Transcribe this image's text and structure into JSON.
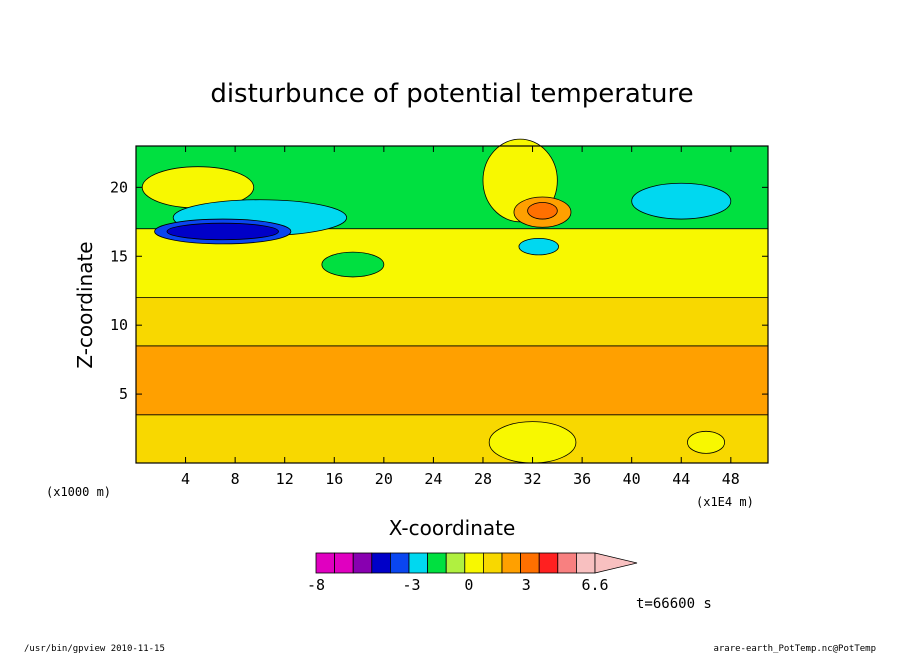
{
  "chart_data": {
    "type": "heatmap",
    "title": "disturbunce of potential temperature",
    "xlabel": "X-coordinate",
    "ylabel": "Z-coordinate",
    "x_unit_label": "(x1000 m)",
    "x_scale_label": "(x1E4 m)",
    "x_range": [
      0,
      51
    ],
    "y_range": [
      0,
      23
    ],
    "x_ticks": [
      "4",
      "8",
      "12",
      "16",
      "20",
      "24",
      "28",
      "32",
      "36",
      "40",
      "44",
      "48"
    ],
    "y_ticks": [
      "5",
      "10",
      "15",
      "20"
    ],
    "colorbar": {
      "labels": [
        "-8",
        "-3",
        "0",
        "3",
        "6.6"
      ],
      "colors": [
        "#e000c0",
        "#e000c0",
        "#8800b0",
        "#0000c8",
        "#0a46f0",
        "#00d8f0",
        "#00e040",
        "#b0f040",
        "#f8f800",
        "#f8d800",
        "#ffa000",
        "#ff7000",
        "#ff2020",
        "#f88080",
        "#f8c0c0"
      ]
    },
    "layers": [
      {
        "name": "band-1-4",
        "color": "#f8d800",
        "zmin": 0,
        "zmax": 3.5
      },
      {
        "name": "band-4-8",
        "color": "#ffa000",
        "zmin": 3.5,
        "zmax": 8.5
      },
      {
        "name": "band-8-12",
        "color": "#f8d800",
        "zmin": 8.5,
        "zmax": 12
      },
      {
        "name": "band-12-17",
        "color": "#f8f800",
        "zmin": 12,
        "zmax": 17
      },
      {
        "name": "upper-green",
        "color": "#00e040",
        "zmin": 17,
        "zmax": 23
      }
    ],
    "features": [
      {
        "name": "upper-left-yellow",
        "color": "#f8f800",
        "x": 5,
        "z": 20,
        "rx": 4.5,
        "rz": 1.5
      },
      {
        "name": "cyan-band-left",
        "color": "#00d8f0",
        "x": 10,
        "z": 17.8,
        "rx": 7,
        "rz": 1.3
      },
      {
        "name": "blue-region",
        "color": "#0a46f0",
        "x": 7,
        "z": 16.8,
        "rx": 5.5,
        "rz": 0.9
      },
      {
        "name": "dark-blue-core",
        "color": "#0000c8",
        "x": 7,
        "z": 16.8,
        "rx": 4.5,
        "rz": 0.6
      },
      {
        "name": "center-top-yellow",
        "color": "#f8f800",
        "x": 31,
        "z": 20.5,
        "rx": 3,
        "rz": 3
      },
      {
        "name": "warm-orange-core",
        "color": "#ffa000",
        "x": 32.8,
        "z": 18.2,
        "rx": 2.3,
        "rz": 1.1
      },
      {
        "name": "hot-core",
        "color": "#ff7000",
        "x": 32.8,
        "z": 18.3,
        "rx": 1.2,
        "rz": 0.6
      },
      {
        "name": "cyan-blob-center",
        "color": "#00d8f0",
        "x": 32.5,
        "z": 15.7,
        "rx": 1.6,
        "rz": 0.6
      },
      {
        "name": "green-blob-center",
        "color": "#00e040",
        "x": 17.5,
        "z": 14.4,
        "rx": 2.5,
        "rz": 0.9
      },
      {
        "name": "cyan-right",
        "color": "#00d8f0",
        "x": 44,
        "z": 19,
        "rx": 4,
        "rz": 1.3
      },
      {
        "name": "bottom-yellow",
        "color": "#f8f800",
        "x": 32,
        "z": 1.5,
        "rx": 3.5,
        "rz": 1.5
      },
      {
        "name": "bottom-right-yellow",
        "color": "#f8f800",
        "x": 46,
        "z": 1.5,
        "rx": 1.5,
        "rz": 0.8
      }
    ]
  },
  "time_label": "t=66600 s",
  "footer_left": "/usr/bin/gpview   2010-11-15",
  "footer_right": "arare-earth_PotTemp.nc@PotTemp"
}
